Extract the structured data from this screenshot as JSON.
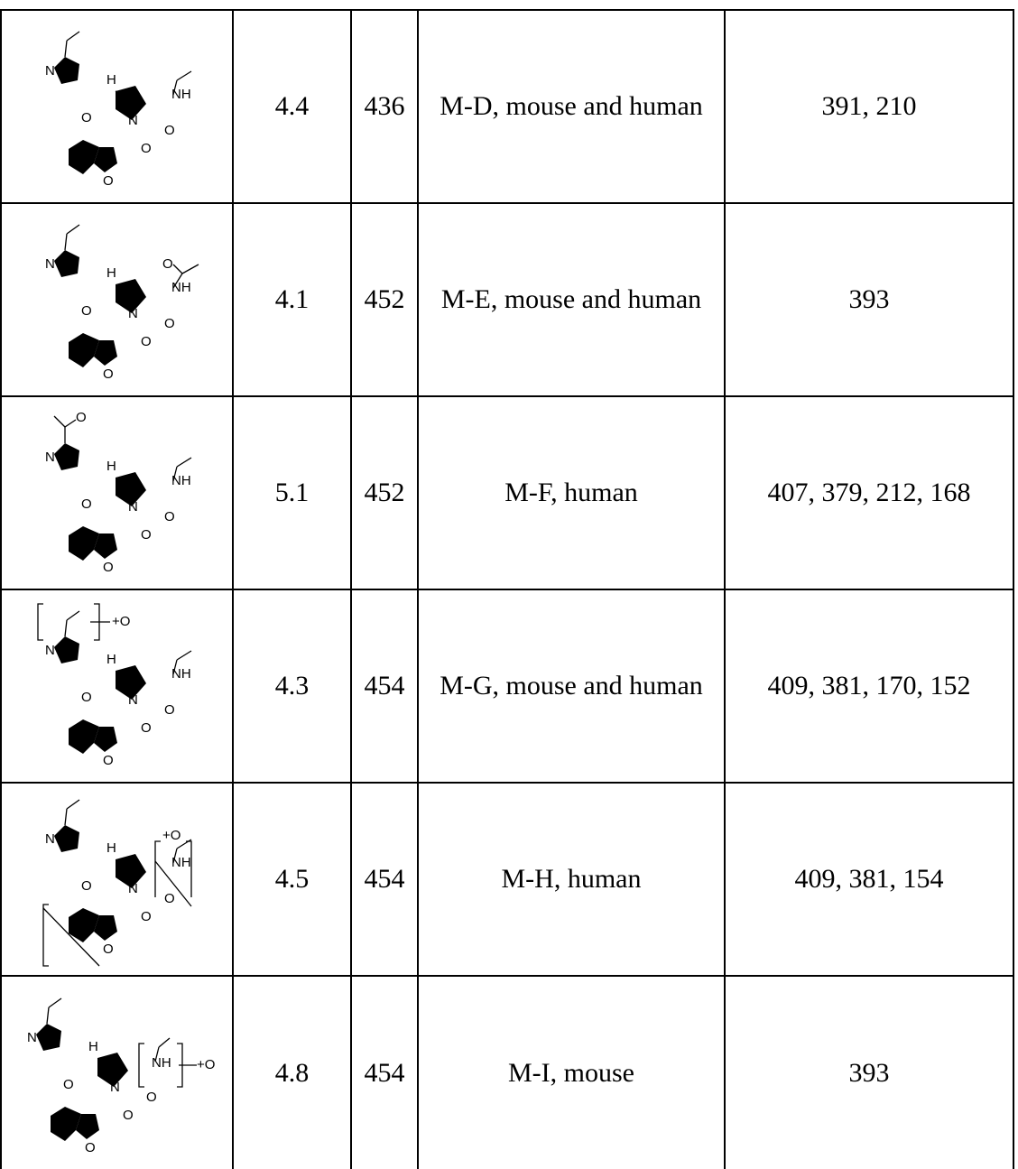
{
  "rows": [
    {
      "structure_icon": "metabolite-structure-M-D",
      "rt": "4.4",
      "mz": "436",
      "metabolite": "M-D, mouse and human",
      "fragments": "391, 210"
    },
    {
      "structure_icon": "metabolite-structure-M-E",
      "rt": "4.1",
      "mz": "452",
      "metabolite": "M-E, mouse and human",
      "fragments": "393"
    },
    {
      "structure_icon": "metabolite-structure-M-F",
      "rt": "5.1",
      "mz": "452",
      "metabolite": "M-F, human",
      "fragments": "407, 379, 212, 168"
    },
    {
      "structure_icon": "metabolite-structure-M-G",
      "rt": "4.3",
      "mz": "454",
      "metabolite": "M-G, mouse and human",
      "fragments": "409, 381, 170, 152"
    },
    {
      "structure_icon": "metabolite-structure-M-H",
      "rt": "4.5",
      "mz": "454",
      "metabolite": "M-H, human",
      "fragments": "409, 381, 154"
    },
    {
      "structure_icon": "metabolite-structure-M-I",
      "rt": "4.8",
      "mz": "454",
      "metabolite": "M-I, mouse",
      "fragments": "393"
    }
  ],
  "atom_labels": {
    "N": "N",
    "O": "O",
    "H": "H",
    "NH": "NH",
    "plus_o": "+O"
  }
}
